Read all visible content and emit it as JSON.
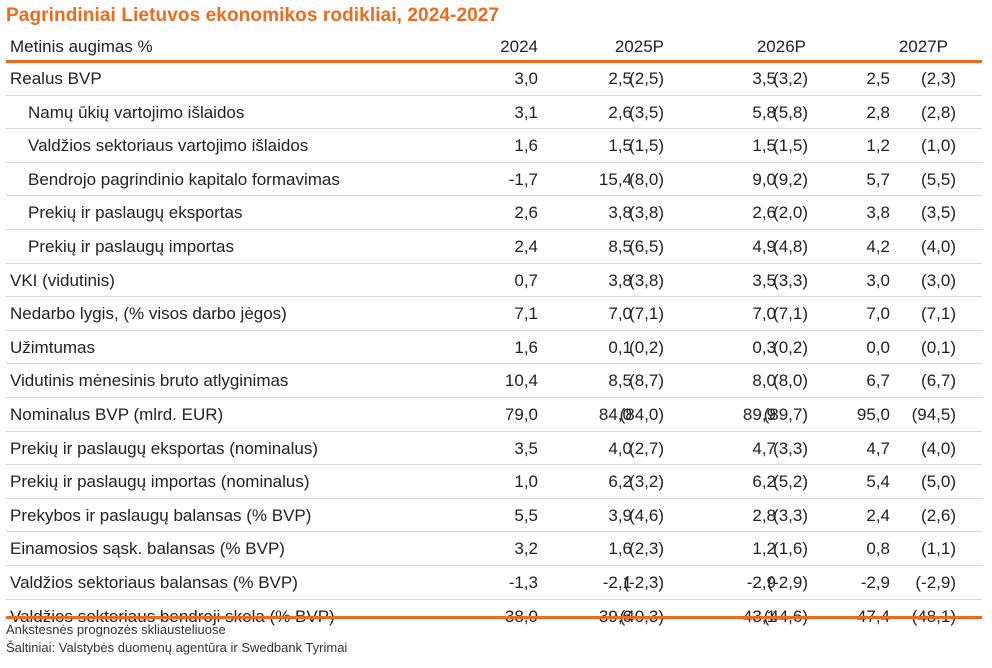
{
  "title": "Pagrindiniai Lietuvos ekonomikos rodikliai, 2024-2027",
  "header": {
    "label": "Metinis augimas %",
    "col_2024": "2024",
    "col_2025": "2025P",
    "col_2026": "2026P",
    "col_2027": "2027P"
  },
  "rows": [
    {
      "label": "Realus BVP",
      "v2024": "3,0",
      "v2025": "2,5",
      "p2025": "(2,5)",
      "v2026": "3,5",
      "p2026": "(3,2)",
      "v2027": "2,5",
      "p2027": "(2,3)"
    },
    {
      "label": "Namų ūkių vartojimo išlaidos",
      "v2024": "3,1",
      "v2025": "2,6",
      "p2025": "(3,5)",
      "v2026": "5,8",
      "p2026": "(5,8)",
      "v2027": "2,8",
      "p2027": "(2,8)"
    },
    {
      "label": "Valdžios sektoriaus vartojimo išlaidos",
      "v2024": "1,6",
      "v2025": "1,5",
      "p2025": "(1,5)",
      "v2026": "1,5",
      "p2026": "(1,5)",
      "v2027": "1,2",
      "p2027": "(1,0)"
    },
    {
      "label": "Bendrojo pagrindinio kapitalo formavimas",
      "v2024": "-1,7",
      "v2025": "15,4",
      "p2025": "(8,0)",
      "v2026": "9,0",
      "p2026": "(9,2)",
      "v2027": "5,7",
      "p2027": "(5,5)"
    },
    {
      "label": "Prekių ir paslaugų eksportas",
      "v2024": "2,6",
      "v2025": "3,8",
      "p2025": "(3,8)",
      "v2026": "2,6",
      "p2026": "(2,0)",
      "v2027": "3,8",
      "p2027": "(3,5)"
    },
    {
      "label": "Prekių ir paslaugų importas",
      "v2024": "2,4",
      "v2025": "8,5",
      "p2025": "(6,5)",
      "v2026": "4,9",
      "p2026": "(4,8)",
      "v2027": "4,2",
      "p2027": "(4,0)"
    },
    {
      "label": "VKI (vidutinis)",
      "v2024": "0,7",
      "v2025": "3,8",
      "p2025": "(3,8)",
      "v2026": "3,5",
      "p2026": "(3,3)",
      "v2027": "3,0",
      "p2027": "(3,0)"
    },
    {
      "label": "Nedarbo lygis, (% visos darbo jėgos)",
      "v2024": "7,1",
      "v2025": "7,0",
      "p2025": "(7,1)",
      "v2026": "7,0",
      "p2026": "(7,1)",
      "v2027": "7,0",
      "p2027": "(7,1)"
    },
    {
      "label": "Užimtumas",
      "v2024": "1,6",
      "v2025": "0,1",
      "p2025": "(0,2)",
      "v2026": "0,3",
      "p2026": "(0,2)",
      "v2027": "0,0",
      "p2027": "(0,1)"
    },
    {
      "label": "Vidutinis mėnesinis bruto atlyginimas",
      "v2024": "10,4",
      "v2025": "8,5",
      "p2025": "(8,7)",
      "v2026": "8,0",
      "p2026": "(8,0)",
      "v2027": "6,7",
      "p2027": "(6,7)"
    },
    {
      "label": "Nominalus BVP (mlrd. EUR)",
      "v2024": "79,0",
      "v2025": "84,0",
      "p2025": "(84,0)",
      "v2026": "89,9",
      "p2026": "(89,7)",
      "v2027": "95,0",
      "p2027": "(94,5)"
    },
    {
      "label": "Prekių ir paslaugų eksportas (nominalus)",
      "v2024": "3,5",
      "v2025": "4,0",
      "p2025": "(2,7)",
      "v2026": "4,7",
      "p2026": "(3,3)",
      "v2027": "4,7",
      "p2027": "(4,0)"
    },
    {
      "label": "Prekių ir paslaugų importas (nominalus)",
      "v2024": "1,0",
      "v2025": "6,2",
      "p2025": "(3,2)",
      "v2026": "6,2",
      "p2026": "(5,2)",
      "v2027": "5,4",
      "p2027": "(5,0)"
    },
    {
      "label": "Prekybos ir paslaugų balansas (% BVP)",
      "v2024": "5,5",
      "v2025": "3,9",
      "p2025": "(4,6)",
      "v2026": "2,8",
      "p2026": "(3,3)",
      "v2027": "2,4",
      "p2027": "(2,6)"
    },
    {
      "label": "Einamosios sąsk. balansas (% BVP)",
      "v2024": "3,2",
      "v2025": "1,6",
      "p2025": "(2,3)",
      "v2026": "1,2",
      "p2026": "(1,6)",
      "v2027": "0,8",
      "p2027": "(1,1)"
    },
    {
      "label": "Valdžios sektoriaus balansas (% BVP)",
      "v2024": "-1,3",
      "v2025": "-2,1",
      "p2025": "(-2,3)",
      "v2026": "-2,9",
      "p2026": "(-2,9)",
      "v2027": "-2,9",
      "p2027": "(-2,9)"
    },
    {
      "label": "Valdžios sektoriaus bendroji skola (% BVP)",
      "v2024": "38,0",
      "v2025": "39,6",
      "p2025": "(40,3)",
      "v2026": "43,1",
      "p2026": "(44,6)",
      "v2027": "47,4",
      "p2027": "(48,1)"
    }
  ],
  "footnote": "Ankstesnės prognozės skliausteliuose",
  "source": "Šaltiniai: Valstybės duomenų agentūra ir Swedbank Tyrimai",
  "colors": {
    "accent": "#f06a1d",
    "text": "#222222",
    "divider": "#d7d7d7"
  }
}
